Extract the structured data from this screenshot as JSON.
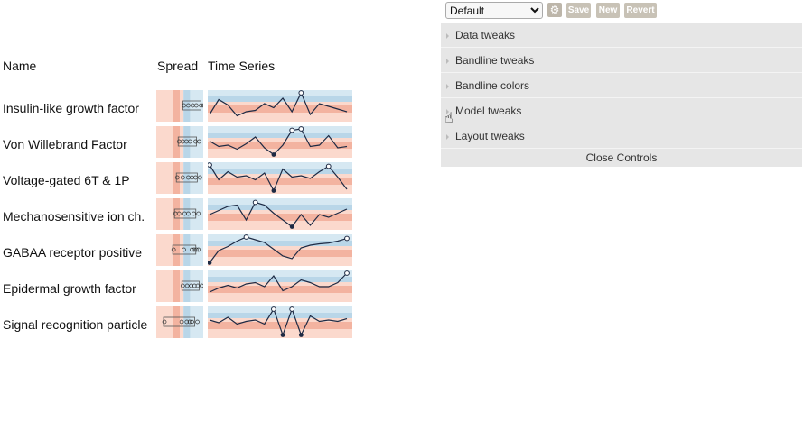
{
  "headers": {
    "name": "Name",
    "spread": "Spread",
    "timeseries": "Time Series"
  },
  "controls": {
    "preset": "Default",
    "gear_icon": "gear-icon",
    "buttons": {
      "save": "Save",
      "new": "New",
      "revert": "Revert"
    },
    "folders": [
      "Data tweaks",
      "Bandline tweaks",
      "Bandline colors",
      "Model tweaks",
      "Layout tweaks"
    ],
    "close_label": "Close Controls"
  },
  "chart_data": [
    {
      "type": "line",
      "name": "Insulin-like growth factor",
      "spread": [
        0.58,
        0.7,
        0.82,
        0.92,
        1.05,
        1.12
      ],
      "values": [
        0.2,
        0.75,
        0.55,
        0.15,
        0.3,
        0.35,
        0.6,
        0.45,
        0.8,
        0.3,
        1.0,
        0.2,
        0.6,
        0.5,
        0.4,
        0.3
      ]
    },
    {
      "type": "line",
      "name": "Von Willebrand Factor",
      "spread": [
        0.45,
        0.55,
        0.65,
        0.75,
        0.9,
        1.0
      ],
      "values": [
        0.55,
        0.35,
        0.4,
        0.25,
        0.45,
        0.7,
        0.3,
        0.05,
        0.4,
        0.95,
        1.0,
        0.35,
        0.4,
        0.75,
        0.3,
        0.35
      ]
    },
    {
      "type": "line",
      "name": "Voltage-gated 6T & 1P",
      "spread": [
        0.4,
        0.55,
        0.7,
        0.8,
        0.9,
        1.02
      ],
      "values": [
        1.0,
        0.45,
        0.75,
        0.55,
        0.6,
        0.45,
        0.7,
        0.05,
        0.85,
        0.55,
        0.6,
        0.5,
        0.75,
        0.95,
        0.55,
        0.1
      ]
    },
    {
      "type": "line",
      "name": "Mechanosensitive ion ch.",
      "spread": [
        0.35,
        0.45,
        0.6,
        0.7,
        0.85,
        0.98
      ],
      "values": [
        0.5,
        0.65,
        0.8,
        0.85,
        0.3,
        0.95,
        0.85,
        0.55,
        0.3,
        0.05,
        0.5,
        0.1,
        0.5,
        0.4,
        0.55,
        0.7
      ]
    },
    {
      "type": "line",
      "name": "GABAA receptor positive",
      "spread": [
        0.3,
        0.58,
        0.8,
        0.86,
        0.92,
        0.98
      ],
      "values": [
        0.05,
        0.5,
        0.65,
        0.85,
        1.0,
        0.9,
        0.8,
        0.55,
        0.3,
        0.2,
        0.6,
        0.7,
        0.75,
        0.78,
        0.85,
        0.95
      ]
    },
    {
      "type": "line",
      "name": "Epidermal growth factor",
      "spread": [
        0.55,
        0.67,
        0.78,
        0.87,
        0.96,
        1.07
      ],
      "values": [
        0.3,
        0.45,
        0.55,
        0.45,
        0.6,
        0.65,
        0.5,
        0.9,
        0.35,
        0.5,
        0.75,
        0.65,
        0.5,
        0.5,
        0.65,
        1.0
      ]
    },
    {
      "type": "line",
      "name": "Signal recognition particle",
      "spread": [
        0.05,
        0.52,
        0.66,
        0.74,
        0.8,
        0.95
      ],
      "values": [
        0.6,
        0.5,
        0.7,
        0.45,
        0.55,
        0.6,
        0.45,
        1.0,
        0.05,
        1.0,
        0.05,
        0.75,
        0.55,
        0.6,
        0.55,
        0.65
      ]
    }
  ]
}
